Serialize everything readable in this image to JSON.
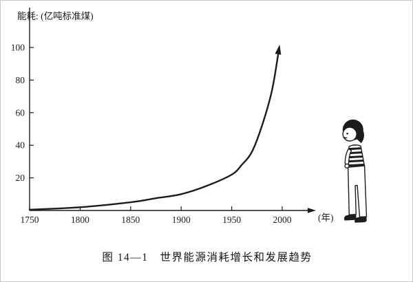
{
  "figure": {
    "caption": "图 14—1　世界能源消耗增长和发展趋势",
    "y_axis_title": "能耗:",
    "y_axis_unit": "(亿吨标准煤)",
    "x_axis_unit": "(年)"
  },
  "colors": {
    "ink": "#1c1c1c",
    "paper": "#ffffff"
  },
  "chart_data": {
    "type": "line",
    "title": "世界能源消耗增长和发展趋势",
    "xlabel": "年",
    "ylabel": "能耗 (亿吨标准煤)",
    "x_ticks": [
      1750,
      1800,
      1850,
      1900,
      1950,
      2000
    ],
    "y_ticks": [
      20,
      40,
      60,
      80,
      100
    ],
    "xlim": [
      1750,
      2030
    ],
    "ylim": [
      0,
      105
    ],
    "grid": false,
    "legend": false,
    "series": [
      {
        "name": "世界能源消耗",
        "x": [
          1750,
          1800,
          1850,
          1875,
          1900,
          1925,
          1950,
          1960,
          1970,
          1980,
          1990,
          1997
        ],
        "y": [
          0.5,
          2,
          5,
          7.5,
          10,
          15,
          22,
          28,
          36,
          52,
          74,
          100
        ],
        "arrow_end": true
      }
    ]
  }
}
